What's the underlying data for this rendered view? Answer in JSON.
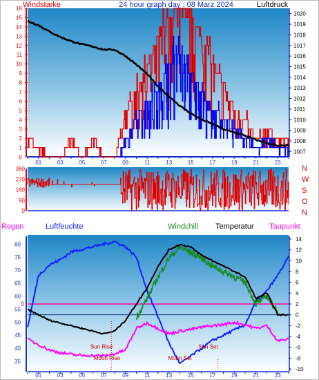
{
  "colors": {
    "wind": "#e00000",
    "gust": "#0000ee",
    "pressure": "#000000",
    "humidity": "#1020ff",
    "windchill": "#1a8a1a",
    "temperature": "#000000",
    "dewpoint": "#ff00ff",
    "zero": "#ff0099",
    "astro": "#cc0000",
    "axis_blue": "#1030cc"
  },
  "chart_data": [
    {
      "type": "line",
      "id": "wind-pressure",
      "title": "24 hour graph day : 08 Marz 2024",
      "left_label": "Windstarke",
      "right_label": "Luftdruck",
      "x_ticks": [
        "01",
        "03",
        "05",
        "07",
        "09",
        "11",
        "13",
        "15",
        "17",
        "19",
        "21",
        "23"
      ],
      "y_left_ticks": [
        "0",
        "1",
        "2",
        "3",
        "4",
        "5",
        "6",
        "7",
        "8",
        "9",
        "10",
        "11",
        "12",
        "13",
        "14",
        "15",
        "16"
      ],
      "y_right_ticks": [
        "1007",
        "1008",
        "1009",
        "1010",
        "1011",
        "1012",
        "1013",
        "1014",
        "1015",
        "1016",
        "1017",
        "1018",
        "1019",
        "1020"
      ],
      "ylim_left": [
        0,
        16
      ],
      "ylim_right": [
        1006.5,
        1020.5
      ],
      "xlim": [
        0,
        24
      ],
      "series": [
        {
          "key": "pressure",
          "values_x": [
            0,
            1,
            2,
            3,
            4,
            5,
            6,
            7,
            8,
            9,
            10,
            11,
            12,
            13,
            14,
            15,
            16,
            17,
            18,
            19,
            20,
            21,
            22,
            23,
            24
          ],
          "values_y": [
            1019.3,
            1018.9,
            1018.3,
            1017.8,
            1017.4,
            1017.1,
            1016.9,
            1016.6,
            1016.6,
            1016.0,
            1015.2,
            1014.3,
            1013.1,
            1012.2,
            1011.3,
            1010.6,
            1010.0,
            1009.6,
            1009.1,
            1008.8,
            1008.5,
            1008.1,
            1007.8,
            1007.5,
            1007.6
          ]
        },
        {
          "key": "wind",
          "segments": [
            [
              0,
              2,
              2,
              0,
              3,
              0,
              4,
              2,
              5,
              0,
              6,
              2,
              7,
              0,
              8,
              0,
              8.4,
              2,
              9,
              5,
              10,
              7,
              11,
              10,
              12,
              13,
              13,
              15,
              14,
              16,
              15,
              15,
              16,
              13,
              17,
              10,
              18,
              8,
              19,
              5,
              20,
              4,
              21,
              2,
              22,
              3,
              23,
              2,
              24,
              2
            ]
          ]
        },
        {
          "key": "gust",
          "segments": [
            [
              8.4,
              0,
              9,
              2,
              10,
              4,
              11,
              6,
              12,
              7,
              13,
              10,
              14,
              11,
              15,
              9,
              16,
              7,
              17,
              5,
              18,
              4,
              19,
              3,
              20,
              2,
              21,
              1,
              22,
              2,
              23,
              1,
              24,
              1
            ]
          ]
        }
      ]
    },
    {
      "type": "line",
      "id": "wind-direction",
      "y_ticks": [
        "360",
        "270",
        "180",
        "90",
        "0"
      ],
      "right_letters": [
        "N",
        "W",
        "S",
        "O",
        "N"
      ],
      "ylim": [
        0,
        360
      ],
      "xlim": [
        0,
        24
      ]
    },
    {
      "type": "line",
      "id": "temp-humidity",
      "legend": [
        "Regen",
        "Luftfeuchte",
        "Windchill",
        "Temperatur",
        "Taupunkt"
      ],
      "x_ticks": [
        "01",
        "03",
        "05",
        "07",
        "09",
        "11",
        "13",
        "15",
        "17",
        "19",
        "21",
        "23"
      ],
      "y_left_ticks": [
        "35",
        "40",
        "45",
        "50",
        "55",
        "60",
        "65",
        "70",
        "75",
        "80"
      ],
      "y_right_ticks": [
        "14",
        "12",
        "10",
        "8",
        "6",
        "4",
        "2",
        "0",
        "-2",
        "-4",
        "-6",
        "-8",
        "-10"
      ],
      "zero_label": "0",
      "ylim_left": [
        31,
        83
      ],
      "ylim_right": [
        -10.5,
        14.5
      ],
      "xlim": [
        0,
        24
      ],
      "annotations": [
        {
          "label": "Sun Rise",
          "x": 6.8,
          "y": -6.2
        },
        {
          "label": "Moon Rise",
          "x": 7.3,
          "y": -8.3
        },
        {
          "label": "Moon Set",
          "x": 14.0,
          "y": -8.3
        },
        {
          "label": "Sun Set",
          "x": 16.6,
          "y": -6.2
        }
      ],
      "series": [
        {
          "key": "humidity",
          "axis": "left",
          "x": [
            0,
            1,
            2,
            3,
            4,
            5,
            6,
            7,
            8,
            9,
            10,
            11,
            12,
            13,
            14,
            15,
            16,
            17,
            18,
            19,
            20,
            21,
            22,
            23,
            24
          ],
          "y": [
            48,
            68,
            72,
            74,
            77,
            78,
            79,
            80,
            81,
            79,
            75,
            62,
            52,
            42,
            34,
            37,
            40,
            43,
            45,
            47,
            49,
            58,
            62,
            68,
            75
          ]
        },
        {
          "key": "temperature",
          "axis": "right",
          "x": [
            0,
            1,
            2,
            3,
            4,
            5,
            6,
            7,
            8,
            9,
            10,
            11,
            12,
            13,
            14,
            15,
            16,
            17,
            18,
            19,
            20,
            21,
            22,
            23,
            24
          ],
          "y": [
            1,
            0,
            -1,
            -1.5,
            -2,
            -2.5,
            -3,
            -3.5,
            -3,
            -1,
            2,
            5,
            9,
            12,
            13,
            12.5,
            11,
            10,
            9,
            8,
            7,
            3,
            4,
            0,
            0
          ]
        },
        {
          "key": "windchill",
          "axis": "right",
          "x": [
            10,
            11,
            12,
            13,
            14,
            15,
            16,
            17,
            18,
            19,
            20,
            21,
            22,
            23
          ],
          "y": [
            -0.5,
            3,
            7,
            10.5,
            12.5,
            11.5,
            10.5,
            9,
            8,
            7,
            6,
            2,
            3.5,
            0.5
          ]
        },
        {
          "key": "dewpoint",
          "axis": "right",
          "x": [
            0,
            1,
            2,
            3,
            4,
            5,
            6,
            7,
            8,
            9,
            10,
            11,
            12,
            13,
            14,
            15,
            16,
            17,
            18,
            19,
            20,
            21,
            22,
            23,
            24
          ],
          "y": [
            -4.5,
            -5.5,
            -6.5,
            -7,
            -7.3,
            -7.5,
            -7.5,
            -7.6,
            -7.2,
            -6.5,
            -2.5,
            -1.5,
            -2.5,
            -3.5,
            -3,
            -2.7,
            -2.3,
            -2,
            -1.8,
            -1.4,
            -1.8,
            -2.5,
            -2,
            -4.8,
            -4.5
          ]
        }
      ]
    }
  ]
}
